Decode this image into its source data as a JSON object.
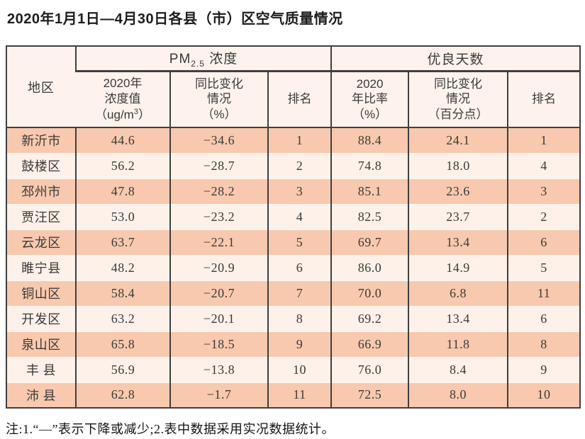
{
  "title": "2020年1月1日—4月30日各县（市）区空气质量情况",
  "note": "注:1.“—”表示下降或减少;2.表中数据采用实况数据统计。",
  "colors": {
    "border": "#3f3f3f",
    "row_dark": "#f8c9ae",
    "row_light": "#fdf1e9",
    "header_bg": "#fdf3ec",
    "text": "#3a3a3a"
  },
  "table": {
    "header": {
      "region": "地区",
      "pm_group": {
        "prefix": "PM",
        "sub": "2.5",
        "suffix": " 浓度"
      },
      "good_group": "优良天数",
      "pm_value": {
        "line1": "2020年",
        "line2": "浓度值",
        "unit_pre": "（ug/m",
        "unit_sup": "3",
        "unit_post": "）"
      },
      "pm_change": {
        "line1": "同比变化",
        "line2": "情况",
        "line3": "（%）"
      },
      "pm_rank": "排名",
      "good_rate": {
        "line1": "2020",
        "line2": "年比率",
        "line3": "（%）"
      },
      "good_change": {
        "line1": "同比变化",
        "line2": "情况",
        "line3": "（百分点）"
      },
      "good_rank": "排名"
    },
    "rows": [
      {
        "region": "新沂市",
        "pm_value": "44.6",
        "pm_change": "−34.6",
        "pm_rank": "1",
        "good_rate": "88.4",
        "good_change": "24.1",
        "good_rank": "1"
      },
      {
        "region": "鼓楼区",
        "pm_value": "56.2",
        "pm_change": "−28.7",
        "pm_rank": "2",
        "good_rate": "74.8",
        "good_change": "18.0",
        "good_rank": "4"
      },
      {
        "region": "邳州市",
        "pm_value": "47.8",
        "pm_change": "−28.2",
        "pm_rank": "3",
        "good_rate": "85.1",
        "good_change": "23.6",
        "good_rank": "3"
      },
      {
        "region": "贾汪区",
        "pm_value": "53.0",
        "pm_change": "−23.2",
        "pm_rank": "4",
        "good_rate": "82.5",
        "good_change": "23.7",
        "good_rank": "2"
      },
      {
        "region": "云龙区",
        "pm_value": "63.7",
        "pm_change": "−22.1",
        "pm_rank": "5",
        "good_rate": "69.7",
        "good_change": "13.4",
        "good_rank": "6"
      },
      {
        "region": "睢宁县",
        "pm_value": "48.2",
        "pm_change": "−20.9",
        "pm_rank": "6",
        "good_rate": "86.0",
        "good_change": "14.9",
        "good_rank": "5"
      },
      {
        "region": "铜山区",
        "pm_value": "58.4",
        "pm_change": "−20.7",
        "pm_rank": "7",
        "good_rate": "70.0",
        "good_change": "6.8",
        "good_rank": "11"
      },
      {
        "region": "开发区",
        "pm_value": "63.2",
        "pm_change": "−20.1",
        "pm_rank": "8",
        "good_rate": "69.2",
        "good_change": "13.4",
        "good_rank": "6"
      },
      {
        "region": "泉山区",
        "pm_value": "65.8",
        "pm_change": "−18.5",
        "pm_rank": "9",
        "good_rate": "66.9",
        "good_change": "11.8",
        "good_rank": "8"
      },
      {
        "region": "丰 县",
        "pm_value": "56.9",
        "pm_change": "−13.8",
        "pm_rank": "10",
        "good_rate": "76.0",
        "good_change": "8.4",
        "good_rank": "9"
      },
      {
        "region": "沛 县",
        "pm_value": "62.8",
        "pm_change": "−1.7",
        "pm_rank": "11",
        "good_rate": "72.5",
        "good_change": "8.0",
        "good_rank": "10"
      }
    ]
  },
  "chart_data": {
    "type": "table",
    "title": "2020年1月1日—4月30日各县（市）区空气质量情况",
    "column_groups": [
      "PM2.5浓度",
      "优良天数"
    ],
    "columns": [
      "地区",
      "PM2.5浓度 2020年浓度值(ug/m3)",
      "PM2.5浓度 同比变化情况(%)",
      "PM2.5浓度 排名",
      "优良天数 2020年比率(%)",
      "优良天数 同比变化情况(百分点)",
      "优良天数 排名"
    ],
    "rows": [
      [
        "新沂市",
        44.6,
        -34.6,
        1,
        88.4,
        24.1,
        1
      ],
      [
        "鼓楼区",
        56.2,
        -28.7,
        2,
        74.8,
        18.0,
        4
      ],
      [
        "邳州市",
        47.8,
        -28.2,
        3,
        85.1,
        23.6,
        3
      ],
      [
        "贾汪区",
        53.0,
        -23.2,
        4,
        82.5,
        23.7,
        2
      ],
      [
        "云龙区",
        63.7,
        -22.1,
        5,
        69.7,
        13.4,
        6
      ],
      [
        "睢宁县",
        48.2,
        -20.9,
        6,
        86.0,
        14.9,
        5
      ],
      [
        "铜山区",
        58.4,
        -20.7,
        7,
        70.0,
        6.8,
        11
      ],
      [
        "开发区",
        63.2,
        -20.1,
        8,
        69.2,
        13.4,
        6
      ],
      [
        "泉山区",
        65.8,
        -18.5,
        9,
        66.9,
        11.8,
        8
      ],
      [
        "丰县",
        56.9,
        -13.8,
        10,
        76.0,
        8.4,
        9
      ],
      [
        "沛县",
        62.8,
        -1.7,
        11,
        72.5,
        8.0,
        10
      ]
    ],
    "note": "注:1.“—”表示下降或减少;2.表中数据采用实况数据统计。"
  }
}
